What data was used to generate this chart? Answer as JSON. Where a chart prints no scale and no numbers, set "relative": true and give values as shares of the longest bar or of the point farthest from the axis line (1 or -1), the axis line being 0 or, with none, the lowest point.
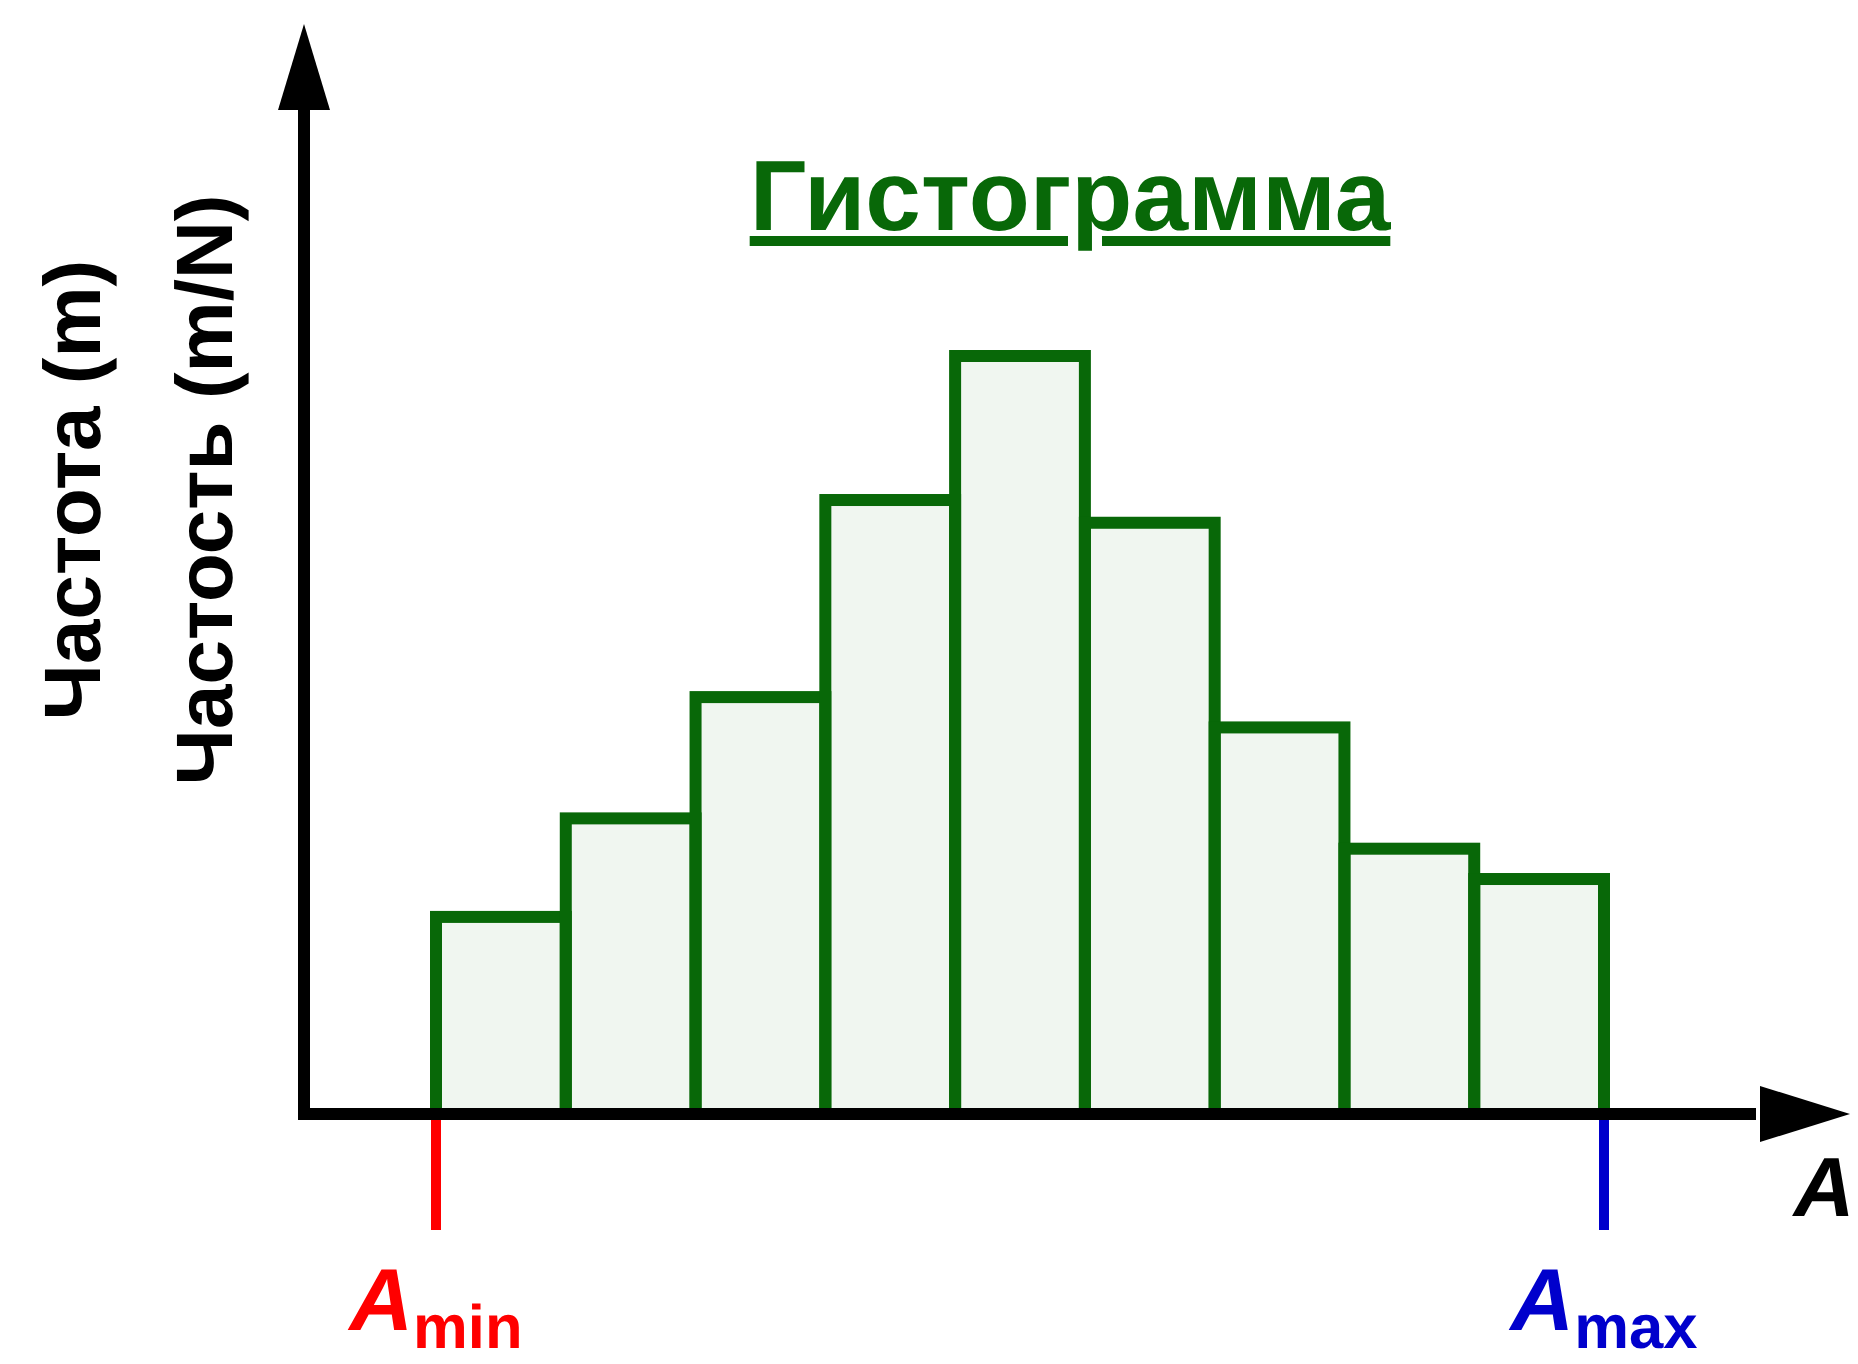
{
  "chart_data": {
    "type": "bar",
    "title": "Гистограмма",
    "xlabel": "A",
    "ylabel": "Частота (m)\nЧастость (m/N)",
    "categories": [
      null,
      null,
      null,
      null,
      null,
      null,
      null,
      null,
      null
    ],
    "values": [
      0.26,
      0.39,
      0.55,
      0.81,
      1,
      0.78,
      0.51,
      0.35,
      0.31
    ],
    "relative": true,
    "color": "#086808",
    "annotations": [
      "A$_{min}$",
      "A$_{max}$"
    ]
  }
}
